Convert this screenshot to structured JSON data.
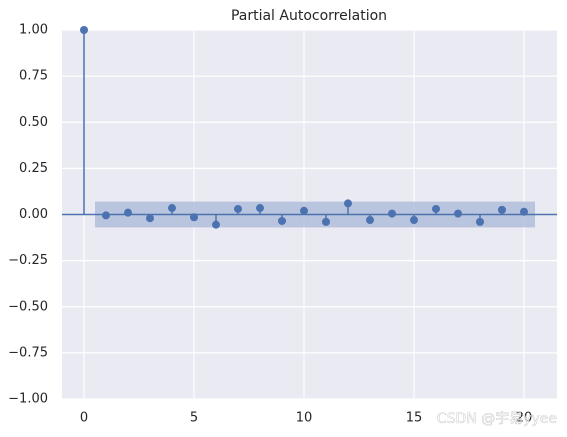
{
  "chart_data": {
    "type": "stem",
    "title": "Partial Autocorrelation",
    "x": [
      0,
      1,
      2,
      3,
      4,
      5,
      6,
      7,
      8,
      9,
      10,
      11,
      12,
      13,
      14,
      15,
      16,
      17,
      18,
      19,
      20
    ],
    "values": [
      1.0,
      -0.005,
      0.01,
      -0.02,
      0.035,
      -0.015,
      -0.055,
      0.03,
      0.035,
      -0.035,
      0.02,
      -0.04,
      0.06,
      -0.03,
      0.005,
      -0.03,
      0.03,
      0.005,
      -0.04,
      0.025,
      0.015
    ],
    "color": "#4c72b0",
    "confint": [
      -0.07,
      0.07
    ],
    "confint_x": [
      0.5,
      20.5
    ],
    "confint_color": "#b0bedb",
    "xlim": [
      -1,
      21.5
    ],
    "xticks": [
      0,
      5,
      10,
      15,
      20
    ],
    "ylim": [
      -1,
      1
    ],
    "yticks": [
      {
        "value": 1,
        "label": "1.00"
      },
      {
        "value": 0.75,
        "label": "0.75"
      },
      {
        "value": 0.5,
        "label": "0.50"
      },
      {
        "value": 0.25,
        "label": "0.25"
      },
      {
        "value": 0,
        "label": "0.00"
      },
      {
        "value": -0.25,
        "label": "−0.25"
      },
      {
        "value": -0.5,
        "label": "−0.50"
      },
      {
        "value": -0.75,
        "label": "−0.75"
      },
      {
        "value": -1,
        "label": "−1.00"
      }
    ],
    "grid": true,
    "watermark": "CSDN @宇易yyee"
  }
}
